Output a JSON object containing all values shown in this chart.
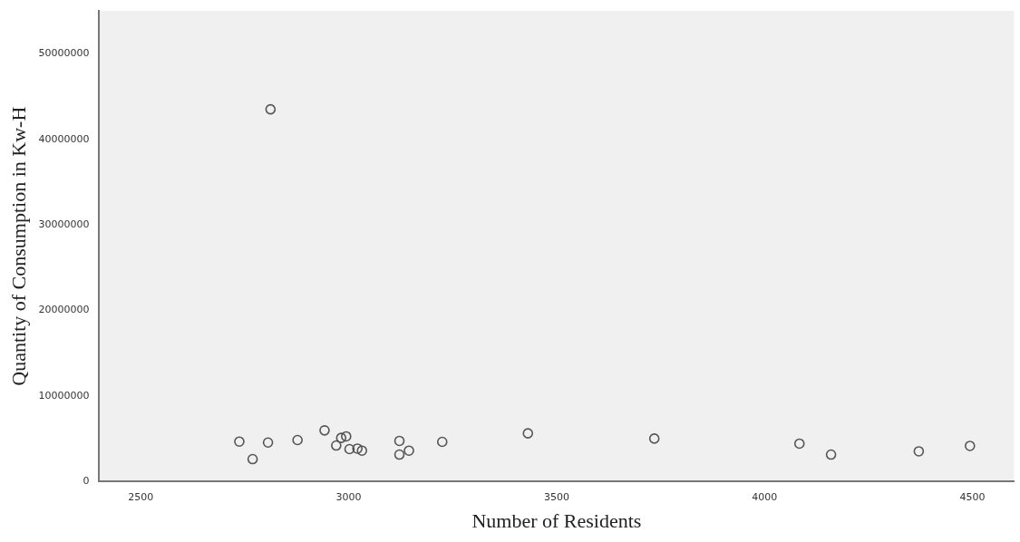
{
  "chart_data": {
    "type": "scatter",
    "xlabel": "Number of Residents",
    "ylabel": "Quantity of Consumption in Kw-H",
    "x": [
      2737,
      2769,
      2806,
      2812,
      2877,
      2942,
      2970,
      2982,
      2994,
      3002,
      3021,
      3032,
      3122,
      3122,
      3145,
      3225,
      3431,
      3735,
      4084,
      4160,
      4371,
      4494
    ],
    "values": [
      4680000,
      2630000,
      4570000,
      43500000,
      4860000,
      5990000,
      4220000,
      5110000,
      5290000,
      3800000,
      3860000,
      3620000,
      4760000,
      3160000,
      3620000,
      4650000,
      5640000,
      5030000,
      4440000,
      3160000,
      3540000,
      4180000
    ],
    "color": "#555555",
    "marker": "circle",
    "grid": false,
    "legend": false,
    "xlim": [
      2400,
      4600
    ],
    "xticks": [
      2500,
      3000,
      3500,
      4000,
      4500
    ],
    "ylim": [
      0,
      55000000
    ],
    "yticks": [
      0,
      10000000,
      20000000,
      30000000,
      40000000,
      50000000
    ]
  }
}
